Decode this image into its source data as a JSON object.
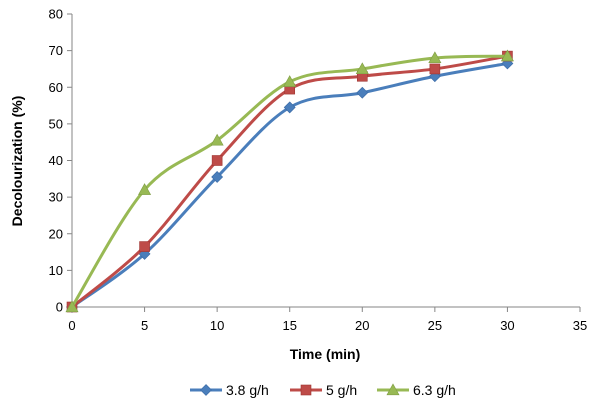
{
  "chart_data": {
    "type": "line",
    "smooth": true,
    "xlabel": "Time (min)",
    "ylabel": "Decolourization (%)",
    "xlim": [
      0,
      35
    ],
    "ylim": [
      0,
      80
    ],
    "xticks": [
      0,
      5,
      10,
      15,
      20,
      25,
      30,
      35
    ],
    "yticks": [
      0,
      10,
      20,
      30,
      40,
      50,
      60,
      70,
      80
    ],
    "grid": false,
    "legend_position": "bottom",
    "series": [
      {
        "name": "3.8 g/h",
        "color": "#4a7ebb",
        "marker": "diamond",
        "x": [
          0,
          5,
          10,
          15,
          20,
          25,
          30
        ],
        "y": [
          0,
          14.5,
          35.5,
          54.5,
          58.5,
          63,
          66.5
        ]
      },
      {
        "name": "5 g/h",
        "color": "#be4b48",
        "marker": "square",
        "x": [
          0,
          5,
          10,
          15,
          20,
          25,
          30
        ],
        "y": [
          0,
          16.5,
          40,
          59.5,
          63,
          65,
          68.5
        ]
      },
      {
        "name": "6.3 g/h",
        "color": "#98b954",
        "marker": "triangle",
        "x": [
          0,
          5,
          10,
          15,
          20,
          25,
          30
        ],
        "y": [
          0,
          32,
          45.5,
          61.5,
          65,
          68,
          68.5
        ]
      }
    ]
  }
}
